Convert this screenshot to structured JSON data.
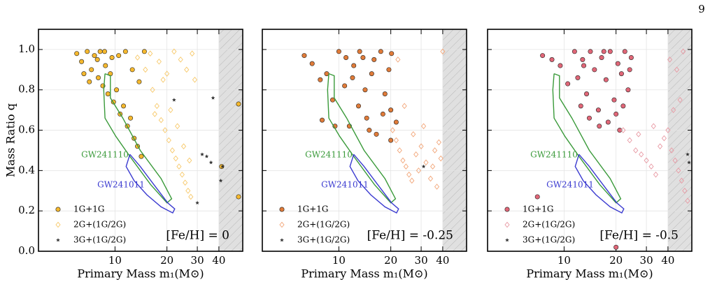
{
  "page_number": "9",
  "chart_data": [
    {
      "type": "scatter",
      "annotation": "[Fe/H] = 0",
      "xlabel": "Primary Mass m₁(M⊙)",
      "ylabel": "Mass Ratio q",
      "log_x": true,
      "grid": true,
      "xlim": [
        3.6,
        55
      ],
      "ylim": [
        0,
        1.1
      ],
      "xticks": [
        10,
        20,
        30,
        40
      ],
      "yticks": [
        {
          "value": 0,
          "label": "0.0"
        },
        0.2,
        0.4,
        0.6,
        0.8,
        {
          "value": 1,
          "label": "1.0"
        }
      ],
      "shade_from": 40,
      "legend": "lower left",
      "contours": [
        {
          "name": "GW241110",
          "color": "#3a9a3a",
          "x": [
            8.75,
            9.4,
            9.4,
            11.1,
            14.0,
            18.5,
            21.3,
            20.0,
            16.1,
            12.2,
            10.1,
            8.75,
            8.6,
            8.75
          ],
          "y": [
            0.88,
            0.87,
            0.76,
            0.66,
            0.5,
            0.36,
            0.26,
            0.24,
            0.33,
            0.47,
            0.57,
            0.66,
            0.8,
            0.88
          ]
        },
        {
          "name": "GW241011",
          "color": "#3a3ad0",
          "x": [
            12.2,
            14.0,
            16.8,
            20.2,
            22.2,
            21.6,
            18.5,
            15.3,
            12.9,
            11.6,
            12.2
          ],
          "y": [
            0.48,
            0.42,
            0.33,
            0.24,
            0.21,
            0.19,
            0.22,
            0.28,
            0.35,
            0.42,
            0.48
          ]
        }
      ],
      "series": [
        {
          "name": "1G+1G",
          "marker": "circle",
          "color": "#f5b82e",
          "x": [
            6.0,
            6.4,
            6.9,
            7.3,
            7.6,
            8.0,
            8.2,
            8.5,
            8.8,
            9.1,
            9.4,
            9.8,
            10.2,
            10.7,
            11.2,
            11.8,
            12.3,
            12.9,
            13.5,
            14.2,
            7.1,
            7.9,
            8.7,
            9.6,
            10.5,
            11.5,
            12.6,
            13.8,
            14.8,
            6.6,
            52,
            52,
            41.5
          ],
          "values": [
            0.98,
            0.94,
            0.99,
            0.9,
            0.97,
            0.86,
            0.99,
            0.82,
            0.92,
            0.78,
            0.88,
            0.74,
            0.8,
            0.68,
            0.72,
            0.62,
            0.66,
            0.56,
            0.52,
            0.47,
            0.84,
            0.95,
            0.99,
            0.96,
            0.97,
            0.99,
            0.9,
            0.84,
            0.99,
            0.88,
            0.73,
            0.27,
            0.42
          ]
        },
        {
          "name": "2G+(1G/2G)",
          "marker": "diamond",
          "color": "#f7c96b",
          "x": [
            13.5,
            15,
            16.5,
            17.5,
            18.5,
            19.5,
            20.5,
            21.5,
            22.5,
            23.5,
            24.5,
            25.5,
            26.5,
            27.5,
            16,
            18,
            20,
            22,
            24,
            26,
            28,
            21,
            23,
            25,
            27,
            19,
            17,
            29
          ],
          "values": [
            0.96,
            0.9,
            0.8,
            0.72,
            0.65,
            0.6,
            0.55,
            0.5,
            0.46,
            0.42,
            0.38,
            0.34,
            0.3,
            0.27,
            0.98,
            0.94,
            0.88,
            0.99,
            0.95,
            0.9,
            0.98,
            0.7,
            0.62,
            0.52,
            0.45,
            0.85,
            0.68,
            0.85
          ]
        },
        {
          "name": "3G+(1G/2G)",
          "marker": "star",
          "color": "#333333",
          "x": [
            22,
            32,
            34,
            36,
            37,
            41,
            42,
            30
          ],
          "values": [
            0.75,
            0.48,
            0.47,
            0.44,
            0.76,
            0.35,
            0.42,
            0.24
          ]
        }
      ]
    },
    {
      "type": "scatter",
      "annotation": "[Fe/H] = -0.25",
      "xlabel": "Primary Mass m₁(M⊙)",
      "log_x": true,
      "grid": true,
      "xlim": [
        3.6,
        55
      ],
      "ylim": [
        0,
        1.1
      ],
      "xticks": [
        10,
        20,
        30,
        40
      ],
      "yticks": [
        {
          "value": 0,
          "label": "0.0"
        },
        0.2,
        0.4,
        0.6,
        0.8,
        {
          "value": 1,
          "label": "1.0"
        }
      ],
      "shade_from": 40,
      "legend": "lower left",
      "contours": [
        {
          "name": "GW241110",
          "color": "#3a9a3a",
          "x": [
            8.75,
            9.4,
            9.4,
            11.1,
            14.0,
            18.5,
            21.3,
            20.0,
            16.1,
            12.2,
            10.1,
            8.75,
            8.6,
            8.75
          ],
          "y": [
            0.88,
            0.87,
            0.76,
            0.66,
            0.5,
            0.36,
            0.26,
            0.24,
            0.33,
            0.47,
            0.57,
            0.66,
            0.8,
            0.88
          ]
        },
        {
          "name": "GW241011",
          "color": "#3a3ad0",
          "x": [
            12.2,
            14.0,
            16.8,
            20.2,
            22.2,
            21.6,
            18.5,
            15.3,
            12.9,
            11.6,
            12.2
          ],
          "y": [
            0.48,
            0.42,
            0.33,
            0.24,
            0.21,
            0.19,
            0.22,
            0.28,
            0.35,
            0.42,
            0.48
          ]
        }
      ],
      "series": [
        {
          "name": "1G+1G",
          "marker": "circle",
          "color": "#e07b39",
          "x": [
            6.3,
            7.0,
            7.8,
            8.5,
            9.2,
            10.0,
            10.8,
            11.5,
            12.2,
            13.0,
            13.8,
            14.5,
            15.5,
            16.5,
            17.5,
            18.5,
            19.5,
            20.0,
            20.0,
            20.2,
            11.0,
            12.0,
            13.2,
            14.2,
            15.0,
            9.5,
            8.0,
            16,
            18,
            21.5
          ],
          "values": [
            0.97,
            0.93,
            0.85,
            0.88,
            0.75,
            0.99,
            0.82,
            0.62,
            0.92,
            0.72,
            0.96,
            0.66,
            0.88,
            0.58,
            0.99,
            0.78,
            0.9,
            0.7,
            0.55,
            0.98,
            0.96,
            0.86,
            0.99,
            0.8,
            0.6,
            0.62,
            0.65,
            0.95,
            0.68,
            0.64
          ]
        },
        {
          "name": "2G+(1G/2G)",
          "marker": "diamond",
          "color": "#f2a679",
          "x": [
            20.5,
            21.5,
            22.5,
            23.5,
            24.5,
            25.5,
            26.5,
            28,
            30,
            32,
            34,
            36,
            38,
            39,
            40,
            22,
            24,
            27,
            29,
            31,
            35,
            37
          ],
          "values": [
            0.6,
            0.55,
            0.5,
            0.45,
            0.42,
            0.38,
            0.35,
            0.48,
            0.52,
            0.44,
            0.36,
            0.5,
            0.54,
            0.46,
            0.99,
            0.95,
            0.72,
            0.58,
            0.4,
            0.62,
            0.42,
            0.32
          ]
        },
        {
          "name": "3G+(1G/2G)",
          "marker": "star",
          "color": "#333333",
          "x": [
            31
          ],
          "values": [
            0.42
          ]
        }
      ]
    },
    {
      "type": "scatter",
      "annotation": "[Fe/H] = -0.5",
      "xlabel": "Primary Mass m₁(M⊙)",
      "log_x": true,
      "grid": true,
      "xlim": [
        3.6,
        55
      ],
      "ylim": [
        0,
        1.1
      ],
      "xticks": [
        10,
        20,
        30,
        40
      ],
      "yticks": [
        {
          "value": 0,
          "label": "0.0"
        },
        0.2,
        0.4,
        0.6,
        0.8,
        {
          "value": 1,
          "label": "1.0"
        }
      ],
      "shade_from": 40,
      "legend": "lower left",
      "contours": [
        {
          "name": "GW241110",
          "color": "#3a9a3a",
          "x": [
            8.75,
            9.4,
            9.4,
            11.1,
            14.0,
            18.5,
            21.3,
            20.0,
            16.1,
            12.2,
            10.1,
            8.75,
            8.6,
            8.75
          ],
          "y": [
            0.88,
            0.87,
            0.76,
            0.66,
            0.5,
            0.36,
            0.26,
            0.24,
            0.33,
            0.47,
            0.57,
            0.66,
            0.8,
            0.88
          ]
        },
        {
          "name": "GW241011",
          "color": "#3a3ad0",
          "x": [
            12.2,
            14.0,
            16.8,
            20.2,
            22.2,
            21.6,
            18.5,
            15.3,
            12.9,
            11.6,
            12.2
          ],
          "y": [
            0.48,
            0.42,
            0.33,
            0.24,
            0.21,
            0.19,
            0.22,
            0.28,
            0.35,
            0.42,
            0.48
          ]
        }
      ],
      "series": [
        {
          "name": "1G+1G",
          "marker": "circle",
          "color": "#e06677",
          "x": [
            7.5,
            8.5,
            9.5,
            10.5,
            11.5,
            12.0,
            12.8,
            13.5,
            14.2,
            15.0,
            15.8,
            16.5,
            17.5,
            18.5,
            19.5,
            20.5,
            21.5,
            22.5,
            23.5,
            24.5,
            12.5,
            14,
            16,
            18,
            20,
            22,
            24,
            13,
            17,
            21,
            7,
            20
          ],
          "values": [
            0.97,
            0.95,
            0.92,
            0.83,
            0.99,
            0.86,
            0.95,
            0.78,
            0.99,
            0.9,
            0.7,
            0.96,
            0.85,
            0.99,
            0.75,
            0.93,
            0.88,
            0.99,
            0.8,
            0.96,
            0.72,
            0.66,
            0.62,
            0.64,
            0.68,
            0.72,
            0.9,
            0.92,
            0.99,
            0.6,
            0.27,
            0.02
          ]
        },
        {
          "name": "2G+(1G/2G)",
          "marker": "diamond",
          "color": "#e89aa4",
          "x": [
            22,
            24,
            26,
            28,
            30,
            32,
            34,
            36,
            38,
            40,
            42,
            44,
            46,
            48,
            50,
            52,
            41,
            45,
            49,
            33,
            27,
            43,
            47
          ],
          "values": [
            0.6,
            0.55,
            0.5,
            0.48,
            0.45,
            0.42,
            0.38,
            0.52,
            0.56,
            0.6,
            0.5,
            0.45,
            0.4,
            0.35,
            0.3,
            0.25,
            0.95,
            0.9,
            0.99,
            0.62,
            0.58,
            0.7,
            0.75
          ]
        },
        {
          "name": "3G+(1G/2G)",
          "marker": "star",
          "color": "#333333",
          "x": [
            52,
            53
          ],
          "values": [
            0.48,
            0.44
          ]
        }
      ]
    }
  ]
}
